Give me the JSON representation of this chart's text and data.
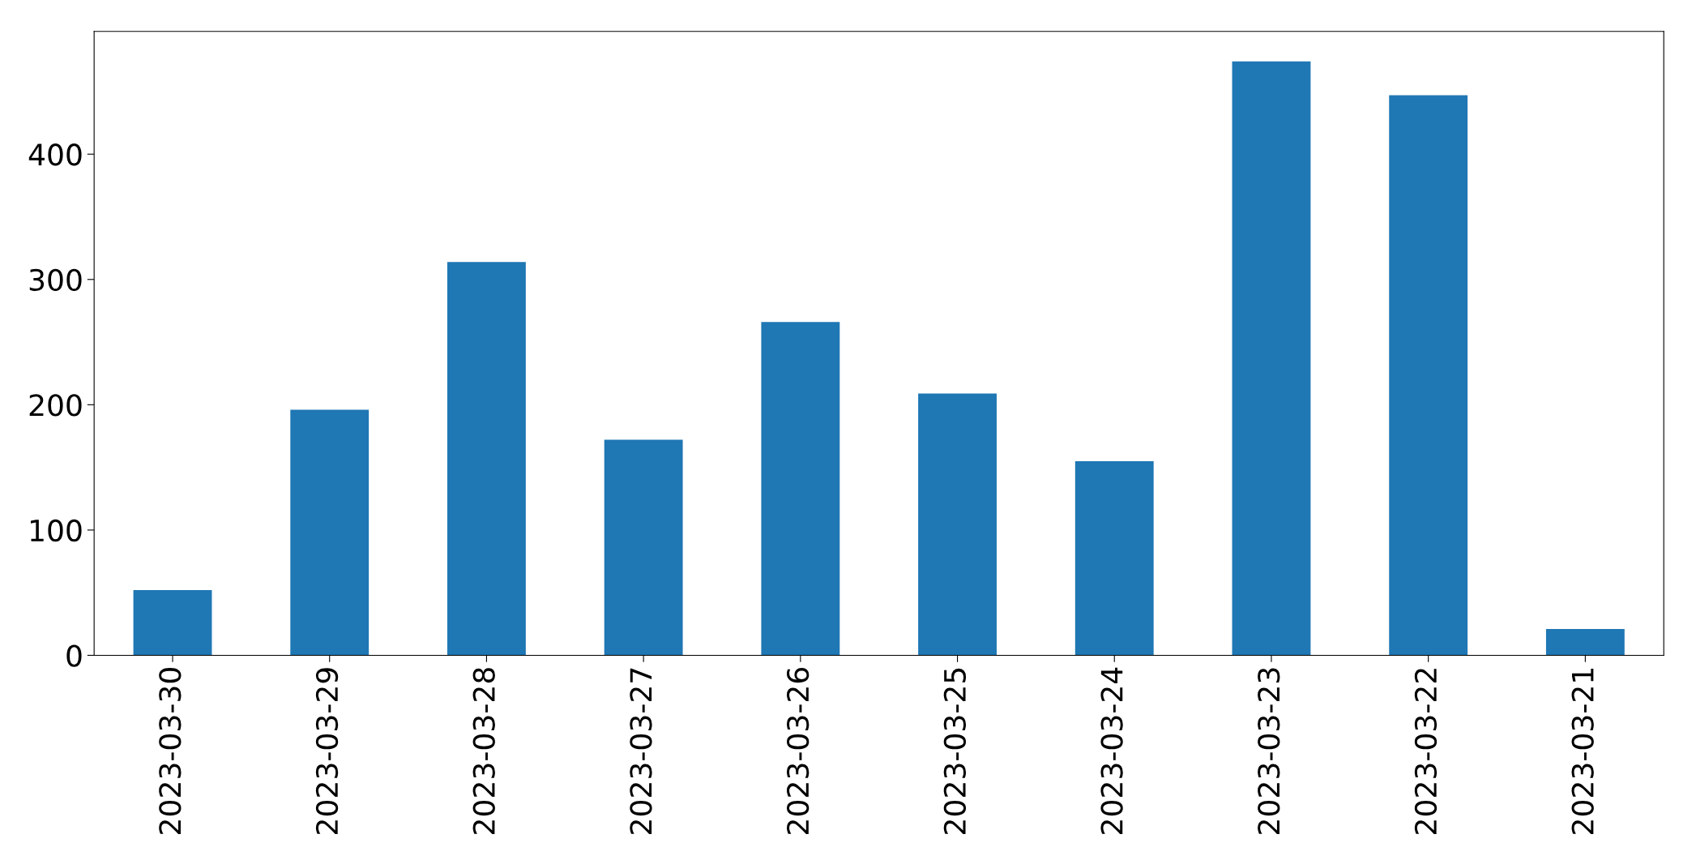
{
  "chart_data": {
    "type": "bar",
    "categories": [
      "2023-03-30",
      "2023-03-29",
      "2023-03-28",
      "2023-03-27",
      "2023-03-26",
      "2023-03-25",
      "2023-03-24",
      "2023-03-23",
      "2023-03-22",
      "2023-03-21"
    ],
    "values": [
      52,
      196,
      314,
      172,
      266,
      209,
      155,
      474,
      447,
      21
    ],
    "color": "#1f77b4",
    "ylim": [
      0,
      498
    ],
    "yticks": [
      0,
      100,
      200,
      300,
      400
    ],
    "grid": false,
    "legend": false
  }
}
